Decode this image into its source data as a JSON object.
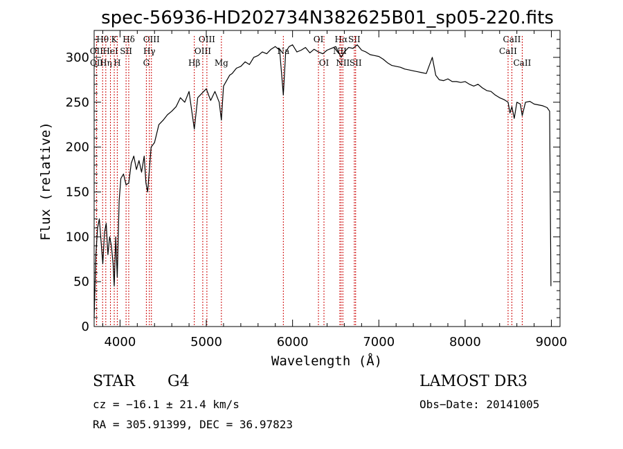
{
  "chart_data": {
    "type": "line",
    "title": "spec-56936-HD202734N382625B01_sp05-220.fits",
    "xlabel": "Wavelength (Å)",
    "ylabel": "Flux (relative)",
    "xlim": [
      3700,
      9100
    ],
    "ylim": [
      0,
      330
    ],
    "xticks": [
      4000,
      5000,
      6000,
      7000,
      8000,
      9000
    ],
    "yticks": [
      0,
      50,
      100,
      150,
      200,
      250,
      300
    ],
    "grid": false,
    "series": [
      {
        "name": "Flux",
        "color": "#000000",
        "x": [
          3700,
          3720,
          3740,
          3760,
          3780,
          3800,
          3820,
          3840,
          3860,
          3880,
          3900,
          3920,
          3933,
          3950,
          3968,
          3990,
          4010,
          4040,
          4070,
          4101,
          4130,
          4160,
          4190,
          4220,
          4250,
          4280,
          4300,
          4320,
          4340,
          4360,
          4400,
          4450,
          4500,
          4550,
          4600,
          4650,
          4700,
          4750,
          4800,
          4861,
          4900,
          4950,
          5000,
          5050,
          5100,
          5150,
          5175,
          5200,
          5270,
          5300,
          5350,
          5400,
          5450,
          5500,
          5550,
          5600,
          5650,
          5700,
          5750,
          5800,
          5850,
          5893,
          5920,
          5960,
          6000,
          6050,
          6100,
          6150,
          6200,
          6250,
          6300,
          6350,
          6400,
          6450,
          6500,
          6563,
          6600,
          6650,
          6700,
          6750,
          6800,
          6850,
          6900,
          6950,
          7000,
          7050,
          7100,
          7150,
          7200,
          7250,
          7300,
          7350,
          7400,
          7450,
          7500,
          7550,
          7600,
          7620,
          7660,
          7700,
          7750,
          7800,
          7850,
          7900,
          7950,
          8000,
          8050,
          8100,
          8150,
          8200,
          8250,
          8300,
          8350,
          8400,
          8450,
          8498,
          8520,
          8542,
          8570,
          8600,
          8640,
          8662,
          8700,
          8750,
          8800,
          8850,
          8900,
          8950,
          8980,
          8995
        ],
        "values": [
          10,
          80,
          110,
          120,
          95,
          70,
          105,
          115,
          80,
          100,
          90,
          70,
          45,
          100,
          55,
          140,
          165,
          170,
          158,
          160,
          182,
          190,
          175,
          185,
          172,
          190,
          160,
          150,
          175,
          200,
          205,
          225,
          230,
          236,
          240,
          245,
          255,
          250,
          262,
          220,
          255,
          260,
          265,
          252,
          262,
          250,
          230,
          268,
          280,
          282,
          288,
          290,
          295,
          292,
          300,
          302,
          306,
          304,
          309,
          312,
          308,
          258,
          306,
          312,
          314,
          306,
          308,
          311,
          305,
          309,
          306,
          304,
          308,
          310,
          312,
          300,
          306,
          311,
          310,
          314,
          308,
          306,
          303,
          302,
          301,
          298,
          294,
          291,
          290,
          289,
          287,
          286,
          285,
          284,
          283,
          282,
          295,
          300,
          280,
          275,
          274,
          276,
          273,
          273,
          272,
          273,
          270,
          268,
          270,
          266,
          263,
          262,
          258,
          255,
          253,
          250,
          238,
          245,
          232,
          250,
          248,
          235,
          250,
          251,
          248,
          247,
          246,
          244,
          240,
          45
        ]
      }
    ],
    "line_markers": [
      {
        "name": "Hθ",
        "x": 3798,
        "row": 0
      },
      {
        "name": "OII",
        "x": 3727,
        "row": 1
      },
      {
        "name": "OII",
        "x": 3729,
        "row": 2
      },
      {
        "name": "Hη",
        "x": 3835,
        "row": 2
      },
      {
        "name": "HeI",
        "x": 3889,
        "row": 1
      },
      {
        "name": "K",
        "x": 3933,
        "row": 0
      },
      {
        "name": "SII",
        "x": 4070,
        "row": 1
      },
      {
        "name": "H",
        "x": 3968,
        "row": 2
      },
      {
        "name": "Hδ",
        "x": 4101,
        "row": 0
      },
      {
        "name": "OIII",
        "x": 4364,
        "row": 0
      },
      {
        "name": "Hγ",
        "x": 4340,
        "row": 1
      },
      {
        "name": "G",
        "x": 4305,
        "row": 2
      },
      {
        "name": "Hβ",
        "x": 4861,
        "row": 2
      },
      {
        "name": "OIII",
        "x": 5007,
        "row": 0
      },
      {
        "name": "OIII",
        "x": 4959,
        "row": 1
      },
      {
        "name": "Mg",
        "x": 5175,
        "row": 2
      },
      {
        "name": "Na",
        "x": 5893,
        "row": 1
      },
      {
        "name": "OI",
        "x": 6300,
        "row": 0
      },
      {
        "name": "OI",
        "x": 6364,
        "row": 2
      },
      {
        "name": "Hα",
        "x": 6563,
        "row": 0
      },
      {
        "name": "NII",
        "x": 6548,
        "row": 1
      },
      {
        "name": "NII",
        "x": 6583,
        "row": 2
      },
      {
        "name": "SII",
        "x": 6716,
        "row": 0
      },
      {
        "name": "SII",
        "x": 6731,
        "row": 2
      },
      {
        "name": "CaII",
        "x": 8542,
        "row": 0
      },
      {
        "name": "CaII",
        "x": 8498,
        "row": 1
      },
      {
        "name": "CaII",
        "x": 8662,
        "row": 2
      }
    ],
    "marker_color": "#cc0000"
  },
  "info": {
    "object_class": "STAR",
    "subclass": "G4",
    "survey": "LAMOST DR3",
    "cz": "cz = −16.1 ± 21.4 km/s",
    "obs_date": "Obs−Date: 20141005",
    "coords": "RA = 305.91399, DEC =  36.97823"
  }
}
